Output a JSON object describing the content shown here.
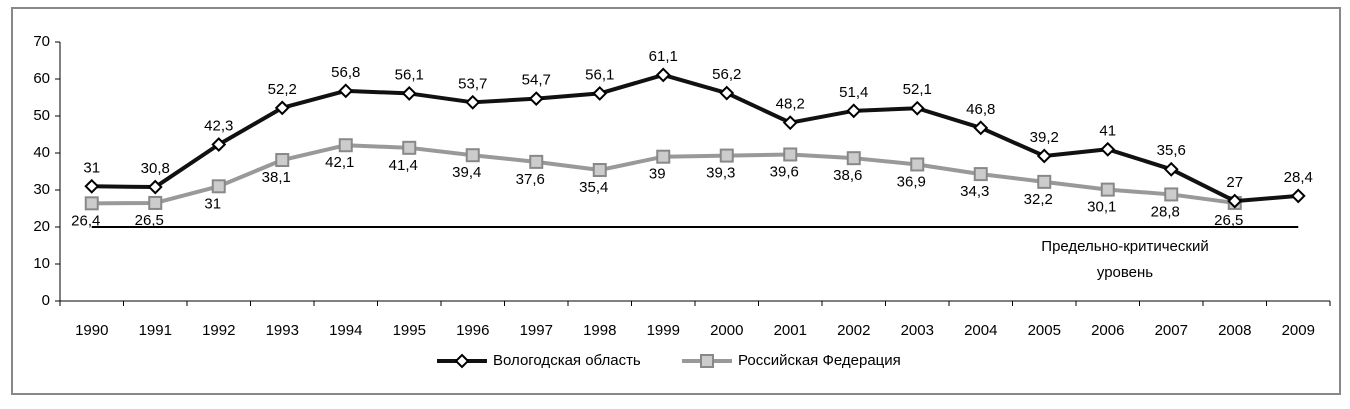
{
  "chart_data": {
    "type": "line",
    "categories": [
      "1990",
      "1991",
      "1992",
      "1993",
      "1994",
      "1995",
      "1996",
      "1997",
      "1998",
      "1999",
      "2000",
      "2001",
      "2002",
      "2003",
      "2004",
      "2005",
      "2006",
      "2007",
      "2008",
      "2009"
    ],
    "series": [
      {
        "name": "Вологодская область",
        "color": "#111111",
        "marker": "diamond",
        "values": [
          31,
          30.8,
          42.3,
          52.2,
          56.8,
          56.1,
          53.7,
          54.7,
          56.1,
          61.1,
          56.2,
          48.2,
          51.4,
          52.1,
          46.8,
          39.2,
          41,
          35.6,
          27,
          28.4
        ],
        "value_labels": [
          "31",
          "30,8",
          "42,3",
          "52,2",
          "56,8",
          "56,1",
          "53,7",
          "54,7",
          "56,1",
          "61,1",
          "56,2",
          "48,2",
          "51,4",
          "52,1",
          "46,8",
          "39,2",
          "41",
          "35,6",
          "27",
          "28,4"
        ]
      },
      {
        "name": "Российская Федерация",
        "color": "#999999",
        "marker": "square",
        "values": [
          26.4,
          26.5,
          31,
          38.1,
          42.1,
          41.4,
          39.4,
          37.6,
          35.4,
          39,
          39.3,
          39.6,
          38.6,
          36.9,
          34.3,
          32.2,
          30.1,
          28.8,
          26.5,
          null
        ],
        "value_labels": [
          "26,4",
          "26,5",
          "31",
          "38,1",
          "42,1",
          "41,4",
          "39,4",
          "37,6",
          "35,4",
          "39",
          "39,3",
          "39,6",
          "38,6",
          "36,9",
          "34,3",
          "32,2",
          "30,1",
          "28,8",
          "26,5",
          null
        ]
      }
    ],
    "threshold": 20,
    "annotation": [
      "Предельно-критический",
      "уровень"
    ],
    "ylim": [
      0,
      70
    ],
    "yticks": [
      0,
      10,
      20,
      30,
      40,
      50,
      60,
      70
    ],
    "legend": "bottom"
  }
}
